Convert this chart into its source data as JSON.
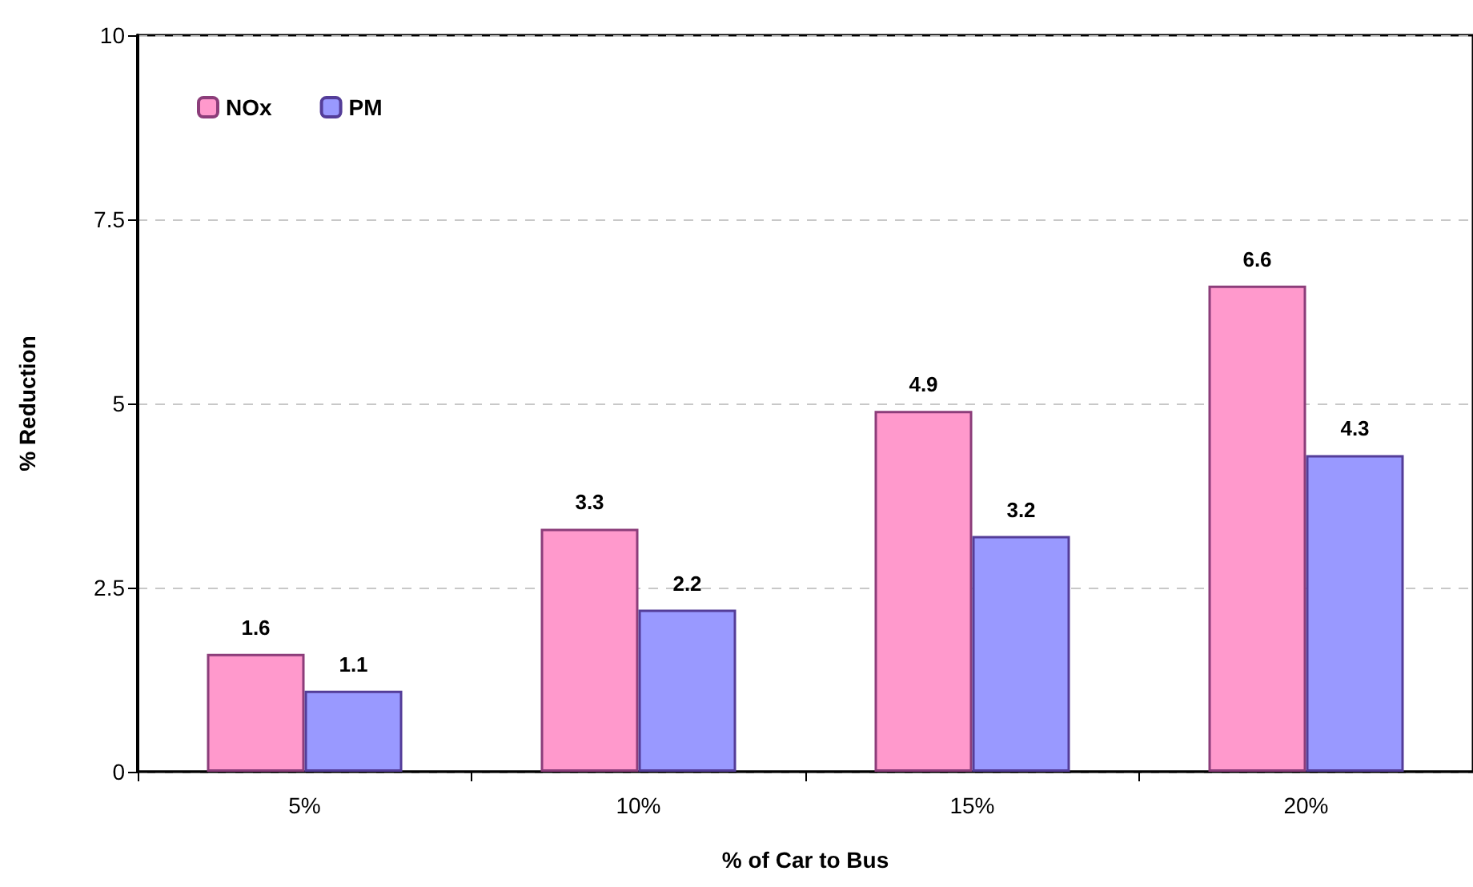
{
  "chart_data": {
    "type": "bar",
    "xlabel": "% of Car to Bus",
    "ylabel": "% Reduction",
    "categories": [
      "5%",
      "10%",
      "15%",
      "20%"
    ],
    "series": [
      {
        "name": "NOx",
        "color": "#ff99cc",
        "values": [
          1.6,
          3.3,
          4.9,
          6.6
        ]
      },
      {
        "name": "PM",
        "color": "#9999ff",
        "values": [
          1.1,
          2.2,
          3.2,
          4.3
        ]
      }
    ],
    "ylim": [
      0,
      10
    ],
    "yticks": [
      0,
      2.5,
      5,
      7.5,
      10
    ],
    "grid": "y",
    "legend": "top left",
    "data_labels": true
  }
}
